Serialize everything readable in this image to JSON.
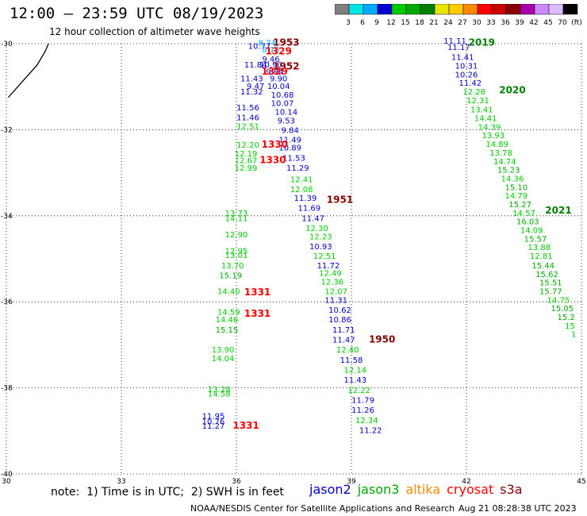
{
  "header": {
    "title": "12:00 – 23:59 UTC 08/19/2023",
    "subtitle": "12 hour collection of altimeter wave heights"
  },
  "colorbar": {
    "colors": [
      "#808080",
      "#00e5e5",
      "#00aaff",
      "#0000cc",
      "#00cc00",
      "#00aa00",
      "#008000",
      "#e6e600",
      "#ffcc00",
      "#ff8800",
      "#ff0000",
      "#cc0000",
      "#880000",
      "#aa00aa",
      "#cc88ff",
      "#ddbbff",
      "#000000"
    ],
    "labels": [
      "3",
      "6",
      "9",
      "12",
      "15",
      "18",
      "21",
      "24",
      "27",
      "30",
      "33",
      "36",
      "39",
      "42",
      "45",
      "70",
      "(ft)"
    ]
  },
  "note": "note:  1) Time is in UTC;  2) SWH is in feet",
  "legend": [
    {
      "name": "jason2",
      "color": "#0000cc"
    },
    {
      "name": "jason3",
      "color": "#00aa00"
    },
    {
      "name": "altika",
      "color": "#ff8800"
    },
    {
      "name": "cryosat",
      "color": "#ff0000"
    },
    {
      "name": "s3a",
      "color": "#880000"
    }
  ],
  "footer": {
    "left": "NOAA/NESDIS Center for Satellite Applications and Research",
    "right": "Aug 21 08:28:38 UTC 2023"
  },
  "chart_data": {
    "type": "scatter",
    "xlim": [
      30,
      45
    ],
    "ylim": [
      -40,
      -30
    ],
    "x_ticks": [
      30,
      33,
      36,
      39,
      42,
      45
    ],
    "y_ticks": [
      -30,
      -32,
      -34,
      -36,
      -38,
      -40
    ],
    "grid": true,
    "coastline": [
      [
        30.05,
        -31.25
      ],
      [
        30.5,
        -30.8
      ],
      [
        30.8,
        -30.5
      ],
      [
        31.0,
        -30.2
      ],
      [
        31.1,
        -30.0
      ]
    ],
    "values": [
      {
        "x": 36.8,
        "y": -30.05,
        "v": "8.74",
        "c": "#00aaff"
      },
      {
        "x": 36.6,
        "y": -30.12,
        "v": "10.77",
        "c": "#0000cc"
      },
      {
        "x": 36.9,
        "y": -30.2,
        "v": "8.15",
        "c": "#00aaff"
      },
      {
        "x": 36.9,
        "y": -30.42,
        "v": "9.46",
        "c": "#0000cc"
      },
      {
        "x": 36.5,
        "y": -30.55,
        "v": "11.84",
        "c": "#0000cc"
      },
      {
        "x": 36.9,
        "y": -30.55,
        "v": "10.90",
        "c": "#0000cc"
      },
      {
        "x": 37.0,
        "y": -30.72,
        "v": "9.84",
        "c": "#0000cc"
      },
      {
        "x": 37.1,
        "y": -30.88,
        "v": "9.90",
        "c": "#0000cc"
      },
      {
        "x": 36.4,
        "y": -30.88,
        "v": "11.43",
        "c": "#0000cc"
      },
      {
        "x": 36.5,
        "y": -31.05,
        "v": "9.47",
        "c": "#0000cc"
      },
      {
        "x": 37.1,
        "y": -31.05,
        "v": "10.04",
        "c": "#0000cc"
      },
      {
        "x": 36.4,
        "y": -31.18,
        "v": "11.32",
        "c": "#0000cc"
      },
      {
        "x": 37.2,
        "y": -31.25,
        "v": "10.68",
        "c": "#0000cc"
      },
      {
        "x": 37.2,
        "y": -31.45,
        "v": "10.07",
        "c": "#0000cc"
      },
      {
        "x": 36.3,
        "y": -31.55,
        "v": "11.56",
        "c": "#0000cc"
      },
      {
        "x": 37.3,
        "y": -31.65,
        "v": "10.14",
        "c": "#0000cc"
      },
      {
        "x": 36.3,
        "y": -31.78,
        "v": "11.46",
        "c": "#0000cc"
      },
      {
        "x": 37.3,
        "y": -31.85,
        "v": "9.53",
        "c": "#0000cc"
      },
      {
        "x": 36.3,
        "y": -31.98,
        "v": "12.51",
        "c": "#00cc00"
      },
      {
        "x": 37.4,
        "y": -32.08,
        "v": "9.84",
        "c": "#0000cc"
      },
      {
        "x": 37.4,
        "y": -32.3,
        "v": "11.49",
        "c": "#0000cc"
      },
      {
        "x": 36.3,
        "y": -32.42,
        "v": "12.20",
        "c": "#00cc00"
      },
      {
        "x": 37.4,
        "y": -32.48,
        "v": "10.89",
        "c": "#0000cc"
      },
      {
        "x": 36.25,
        "y": -32.62,
        "v": "12.19",
        "c": "#00cc00"
      },
      {
        "x": 37.5,
        "y": -32.72,
        "v": "11.53",
        "c": "#0000cc"
      },
      {
        "x": 36.25,
        "y": -32.78,
        "v": "12.67",
        "c": "#00cc00"
      },
      {
        "x": 36.25,
        "y": -32.95,
        "v": "12.99",
        "c": "#00cc00"
      },
      {
        "x": 37.6,
        "y": -32.95,
        "v": "11.29",
        "c": "#0000cc"
      },
      {
        "x": 37.7,
        "y": -33.22,
        "v": "12.41",
        "c": "#00cc00"
      },
      {
        "x": 37.7,
        "y": -33.45,
        "v": "12.08",
        "c": "#00cc00"
      },
      {
        "x": 37.8,
        "y": -33.65,
        "v": "11.39",
        "c": "#0000cc"
      },
      {
        "x": 37.9,
        "y": -33.88,
        "v": "11.69",
        "c": "#0000cc"
      },
      {
        "x": 36.0,
        "y": -34.0,
        "v": "13.73",
        "c": "#00cc00"
      },
      {
        "x": 36.0,
        "y": -34.12,
        "v": "14.11",
        "c": "#00cc00"
      },
      {
        "x": 38.0,
        "y": -34.12,
        "v": "11.47",
        "c": "#0000cc"
      },
      {
        "x": 38.1,
        "y": -34.35,
        "v": "12.30",
        "c": "#00cc00"
      },
      {
        "x": 36.0,
        "y": -34.5,
        "v": "12.90",
        "c": "#00cc00"
      },
      {
        "x": 38.2,
        "y": -34.55,
        "v": "12.23",
        "c": "#00cc00"
      },
      {
        "x": 38.2,
        "y": -34.78,
        "v": "10.93",
        "c": "#0000cc"
      },
      {
        "x": 36.0,
        "y": -34.88,
        "v": "12.95",
        "c": "#00cc00"
      },
      {
        "x": 36.0,
        "y": -34.98,
        "v": "13.01",
        "c": "#00cc00"
      },
      {
        "x": 38.3,
        "y": -35.0,
        "v": "12.51",
        "c": "#00cc00"
      },
      {
        "x": 38.4,
        "y": -35.22,
        "v": "11.72",
        "c": "#0000cc"
      },
      {
        "x": 35.9,
        "y": -35.22,
        "v": "13.70",
        "c": "#00cc00"
      },
      {
        "x": 38.45,
        "y": -35.4,
        "v": "12.49",
        "c": "#00cc00"
      },
      {
        "x": 35.85,
        "y": -35.45,
        "v": "15.19",
        "c": "#00aa00"
      },
      {
        "x": 38.5,
        "y": -35.6,
        "v": "12.36",
        "c": "#00cc00"
      },
      {
        "x": 38.6,
        "y": -35.82,
        "v": "12.07",
        "c": "#00cc00"
      },
      {
        "x": 35.8,
        "y": -35.82,
        "v": "14.40",
        "c": "#00cc00"
      },
      {
        "x": 38.6,
        "y": -36.02,
        "v": "11.31",
        "c": "#0000cc"
      },
      {
        "x": 38.7,
        "y": -36.25,
        "v": "10.62",
        "c": "#0000cc"
      },
      {
        "x": 35.8,
        "y": -36.3,
        "v": "14.59",
        "c": "#00cc00"
      },
      {
        "x": 38.7,
        "y": -36.48,
        "v": "10.86",
        "c": "#0000cc"
      },
      {
        "x": 35.75,
        "y": -36.48,
        "v": "14.46",
        "c": "#00cc00"
      },
      {
        "x": 35.75,
        "y": -36.72,
        "v": "15.15",
        "c": "#00aa00"
      },
      {
        "x": 38.8,
        "y": -36.72,
        "v": "11.71",
        "c": "#0000cc"
      },
      {
        "x": 38.8,
        "y": -36.95,
        "v": "11.47",
        "c": "#0000cc"
      },
      {
        "x": 35.65,
        "y": -37.18,
        "v": "13.90",
        "c": "#00cc00"
      },
      {
        "x": 38.9,
        "y": -37.18,
        "v": "12.40",
        "c": "#00cc00"
      },
      {
        "x": 35.65,
        "y": -37.38,
        "v": "14.04",
        "c": "#00cc00"
      },
      {
        "x": 39.0,
        "y": -37.42,
        "v": "11.58",
        "c": "#0000cc"
      },
      {
        "x": 39.1,
        "y": -37.65,
        "v": "12.14",
        "c": "#00cc00"
      },
      {
        "x": 39.1,
        "y": -37.88,
        "v": "11.43",
        "c": "#0000cc"
      },
      {
        "x": 35.55,
        "y": -38.1,
        "v": "13.28",
        "c": "#00cc00"
      },
      {
        "x": 35.55,
        "y": -38.2,
        "v": "14.58",
        "c": "#00cc00"
      },
      {
        "x": 39.2,
        "y": -38.12,
        "v": "12.22",
        "c": "#00cc00"
      },
      {
        "x": 39.3,
        "y": -38.35,
        "v": "11.79",
        "c": "#0000cc"
      },
      {
        "x": 39.3,
        "y": -38.58,
        "v": "11.26",
        "c": "#0000cc"
      },
      {
        "x": 35.4,
        "y": -38.72,
        "v": "11.95",
        "c": "#0000cc"
      },
      {
        "x": 39.4,
        "y": -38.82,
        "v": "12.34",
        "c": "#00cc00"
      },
      {
        "x": 35.4,
        "y": -38.85,
        "v": "10.76",
        "c": "#0000cc"
      },
      {
        "x": 35.4,
        "y": -38.95,
        "v": "11.27",
        "c": "#0000cc"
      },
      {
        "x": 39.5,
        "y": -39.05,
        "v": "11.22",
        "c": "#0000cc"
      },
      {
        "x": 41.7,
        "y": -30.0,
        "v": "11.11",
        "c": "#0000cc"
      },
      {
        "x": 41.8,
        "y": -30.15,
        "v": "11.17",
        "c": "#0000cc"
      },
      {
        "x": 41.9,
        "y": -30.38,
        "v": "11.41",
        "c": "#0000cc"
      },
      {
        "x": 42.0,
        "y": -30.58,
        "v": "10.31",
        "c": "#0000cc"
      },
      {
        "x": 42.0,
        "y": -30.78,
        "v": "10.26",
        "c": "#0000cc"
      },
      {
        "x": 42.1,
        "y": -30.98,
        "v": "11.42",
        "c": "#0000cc"
      },
      {
        "x": 42.2,
        "y": -31.18,
        "v": "12.28",
        "c": "#00cc00"
      },
      {
        "x": 42.3,
        "y": -31.38,
        "v": "12.31",
        "c": "#00cc00"
      },
      {
        "x": 42.4,
        "y": -31.6,
        "v": "13.41",
        "c": "#00cc00"
      },
      {
        "x": 42.5,
        "y": -31.8,
        "v": "14.41",
        "c": "#00cc00"
      },
      {
        "x": 42.6,
        "y": -32.0,
        "v": "14.39",
        "c": "#00cc00"
      },
      {
        "x": 42.7,
        "y": -32.2,
        "v": "13.93",
        "c": "#00cc00"
      },
      {
        "x": 42.8,
        "y": -32.4,
        "v": "14.89",
        "c": "#00cc00"
      },
      {
        "x": 42.9,
        "y": -32.6,
        "v": "13.78",
        "c": "#00cc00"
      },
      {
        "x": 43.0,
        "y": -32.8,
        "v": "14.74",
        "c": "#00cc00"
      },
      {
        "x": 43.1,
        "y": -33.0,
        "v": "15.23",
        "c": "#00aa00"
      },
      {
        "x": 43.2,
        "y": -33.2,
        "v": "14.36",
        "c": "#00cc00"
      },
      {
        "x": 43.3,
        "y": -33.4,
        "v": "15.10",
        "c": "#00aa00"
      },
      {
        "x": 43.3,
        "y": -33.6,
        "v": "14.79",
        "c": "#00cc00"
      },
      {
        "x": 43.4,
        "y": -33.8,
        "v": "15.27",
        "c": "#00aa00"
      },
      {
        "x": 43.5,
        "y": -34.0,
        "v": "14.57",
        "c": "#00cc00"
      },
      {
        "x": 43.6,
        "y": -34.2,
        "v": "16.03",
        "c": "#00aa00"
      },
      {
        "x": 43.7,
        "y": -34.4,
        "v": "14.09",
        "c": "#00cc00"
      },
      {
        "x": 43.8,
        "y": -34.6,
        "v": "15.57",
        "c": "#00aa00"
      },
      {
        "x": 43.9,
        "y": -34.8,
        "v": "13.88",
        "c": "#00cc00"
      },
      {
        "x": 43.95,
        "y": -35.0,
        "v": "12.81",
        "c": "#00cc00"
      },
      {
        "x": 44.0,
        "y": -35.22,
        "v": "15.44",
        "c": "#00aa00"
      },
      {
        "x": 44.1,
        "y": -35.42,
        "v": "15.62",
        "c": "#00aa00"
      },
      {
        "x": 44.2,
        "y": -35.62,
        "v": "15.51",
        "c": "#00aa00"
      },
      {
        "x": 44.2,
        "y": -35.82,
        "v": "15.77",
        "c": "#00aa00"
      },
      {
        "x": 44.4,
        "y": -36.02,
        "v": "14.75",
        "c": "#00cc00"
      },
      {
        "x": 44.5,
        "y": -36.22,
        "v": "15.05",
        "c": "#00aa00"
      },
      {
        "x": 44.6,
        "y": -36.42,
        "v": "15.2",
        "c": "#00aa00"
      },
      {
        "x": 44.7,
        "y": -36.62,
        "v": "15",
        "c": "#00cc00"
      },
      {
        "x": 44.8,
        "y": -36.82,
        "v": "1",
        "c": "#00cc00"
      }
    ],
    "passes": [
      {
        "x": 37.3,
        "y": -30.05,
        "t": "1953",
        "c": "#880000"
      },
      {
        "x": 37.1,
        "y": -30.25,
        "t": "1329",
        "c": "#ff0000"
      },
      {
        "x": 37.3,
        "y": -30.6,
        "t": "1952",
        "c": "#880000"
      },
      {
        "x": 37.0,
        "y": -30.72,
        "t": "1329",
        "c": "#ff0000"
      },
      {
        "x": 37.0,
        "y": -32.42,
        "t": "1330",
        "c": "#ff0000"
      },
      {
        "x": 36.95,
        "y": -32.78,
        "t": "1330",
        "c": "#ff0000"
      },
      {
        "x": 38.7,
        "y": -33.7,
        "t": "1951",
        "c": "#880000"
      },
      {
        "x": 36.55,
        "y": -35.85,
        "t": "1331",
        "c": "#ff0000"
      },
      {
        "x": 36.55,
        "y": -36.35,
        "t": "1331",
        "c": "#ff0000"
      },
      {
        "x": 39.8,
        "y": -36.95,
        "t": "1950",
        "c": "#880000"
      },
      {
        "x": 36.25,
        "y": -38.95,
        "t": "1331",
        "c": "#ff0000"
      },
      {
        "x": 42.4,
        "y": -30.05,
        "t": "2019",
        "c": "#008000"
      },
      {
        "x": 43.2,
        "y": -31.15,
        "t": "2020",
        "c": "#008000"
      },
      {
        "x": 44.4,
        "y": -33.95,
        "t": "2021",
        "c": "#008000"
      }
    ]
  }
}
